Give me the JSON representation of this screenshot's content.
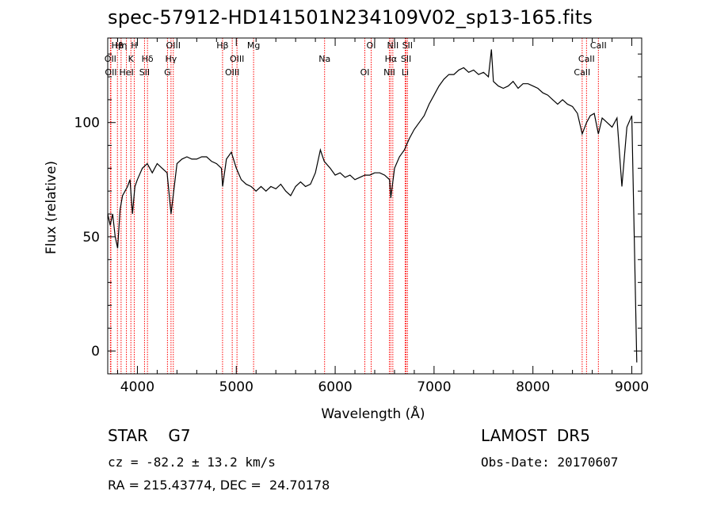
{
  "title": "spec-57912-HD141501N234109V02_sp13-165.fits",
  "info": {
    "object_class": "STAR",
    "subclass": "G7",
    "redshift_line": "cz = -82.2 ± 13.2 km/s",
    "coords_line": "RA = 215.43774, DEC =  24.70178",
    "survey": "LAMOST  DR5",
    "obs_date_line": "Obs-Date: 20170607"
  },
  "chart_data": {
    "type": "line",
    "xlabel": "Wavelength (Å)",
    "ylabel": "Flux (relative)",
    "xlim": [
      3700,
      9100
    ],
    "ylim": [
      -10,
      137
    ],
    "xticks": [
      4000,
      5000,
      6000,
      7000,
      8000,
      9000
    ],
    "yticks": [
      0,
      50,
      100
    ],
    "grid": false,
    "line_color": "#000000",
    "marker_color": "#ff0000",
    "series": [
      {
        "x": [
          3700,
          3725,
          3750,
          3775,
          3800,
          3825,
          3850,
          3875,
          3900,
          3925,
          3950,
          3975,
          4000,
          4050,
          4100,
          4150,
          4200,
          4250,
          4300,
          4340,
          4400,
          4450,
          4500,
          4550,
          4600,
          4650,
          4700,
          4750,
          4800,
          4850,
          4862,
          4900,
          4950,
          5000,
          5050,
          5100,
          5150,
          5200,
          5250,
          5300,
          5350,
          5400,
          5450,
          5500,
          5550,
          5600,
          5650,
          5700,
          5750,
          5800,
          5850,
          5890,
          5950,
          6000,
          6050,
          6100,
          6150,
          6200,
          6250,
          6300,
          6350,
          6400,
          6450,
          6500,
          6550,
          6563,
          6600,
          6650,
          6700,
          6750,
          6800,
          6850,
          6900,
          6950,
          7000,
          7050,
          7100,
          7150,
          7200,
          7250,
          7300,
          7350,
          7400,
          7450,
          7500,
          7550,
          7580,
          7600,
          7650,
          7700,
          7750,
          7800,
          7850,
          7900,
          7950,
          8000,
          8050,
          8100,
          8150,
          8200,
          8250,
          8300,
          8350,
          8400,
          8450,
          8498,
          8542,
          8580,
          8620,
          8662,
          8700,
          8750,
          8800,
          8850,
          8900,
          8950,
          9000,
          9050
        ],
        "values": [
          60,
          55,
          60,
          50,
          45,
          62,
          68,
          70,
          72,
          75,
          60,
          72,
          75,
          80,
          82,
          78,
          82,
          80,
          78,
          60,
          82,
          84,
          85,
          84,
          84,
          85,
          85,
          83,
          82,
          80,
          72,
          84,
          87,
          80,
          75,
          73,
          72,
          70,
          72,
          70,
          72,
          71,
          73,
          70,
          68,
          72,
          74,
          72,
          73,
          78,
          88,
          83,
          80,
          77,
          78,
          76,
          77,
          75,
          76,
          77,
          77,
          78,
          78,
          77,
          75,
          67,
          80,
          85,
          88,
          93,
          97,
          100,
          103,
          108,
          112,
          116,
          119,
          121,
          121,
          123,
          124,
          122,
          123,
          121,
          122,
          120,
          132,
          118,
          116,
          115,
          116,
          118,
          115,
          117,
          117,
          116,
          115,
          113,
          112,
          110,
          108,
          110,
          108,
          107,
          104,
          95,
          100,
          103,
          104,
          95,
          102,
          100,
          98,
          102,
          72,
          98,
          103,
          -5
        ]
      }
    ],
    "spectral_lines": [
      {
        "label": "Hβ",
        "wave": 3798
      },
      {
        "label": "OII",
        "wave": 3727
      },
      {
        "label": "OII",
        "wave": 3732
      },
      {
        "label": "Hη",
        "wave": 3835
      },
      {
        "label": "K",
        "wave": 3934
      },
      {
        "label": "HeI",
        "wave": 3889
      },
      {
        "label": "H",
        "wave": 3968
      },
      {
        "label": "Hδ",
        "wave": 4102
      },
      {
        "label": "SII",
        "wave": 4072
      },
      {
        "label": "OIII",
        "wave": 4363
      },
      {
        "label": "Hγ",
        "wave": 4340
      },
      {
        "label": "G",
        "wave": 4304
      },
      {
        "label": "Hβ",
        "wave": 4861
      },
      {
        "label": "OIII",
        "wave": 5007
      },
      {
        "label": "OIII",
        "wave": 4959
      },
      {
        "label": "Mg",
        "wave": 5175
      },
      {
        "label": "Na",
        "wave": 5893
      },
      {
        "label": "OI",
        "wave": 6300
      },
      {
        "label": "OI",
        "wave": 6364
      },
      {
        "label": "Hα",
        "wave": 6563
      },
      {
        "label": "NII",
        "wave": 6548
      },
      {
        "label": "NII",
        "wave": 6583
      },
      {
        "label": "SII",
        "wave": 6717
      },
      {
        "label": "Li",
        "wave": 6708
      },
      {
        "label": "SII",
        "wave": 6731
      },
      {
        "label": "CaII",
        "wave": 8542
      },
      {
        "label": "CaII",
        "wave": 8498
      },
      {
        "label": "CaII",
        "wave": 8662
      }
    ]
  }
}
